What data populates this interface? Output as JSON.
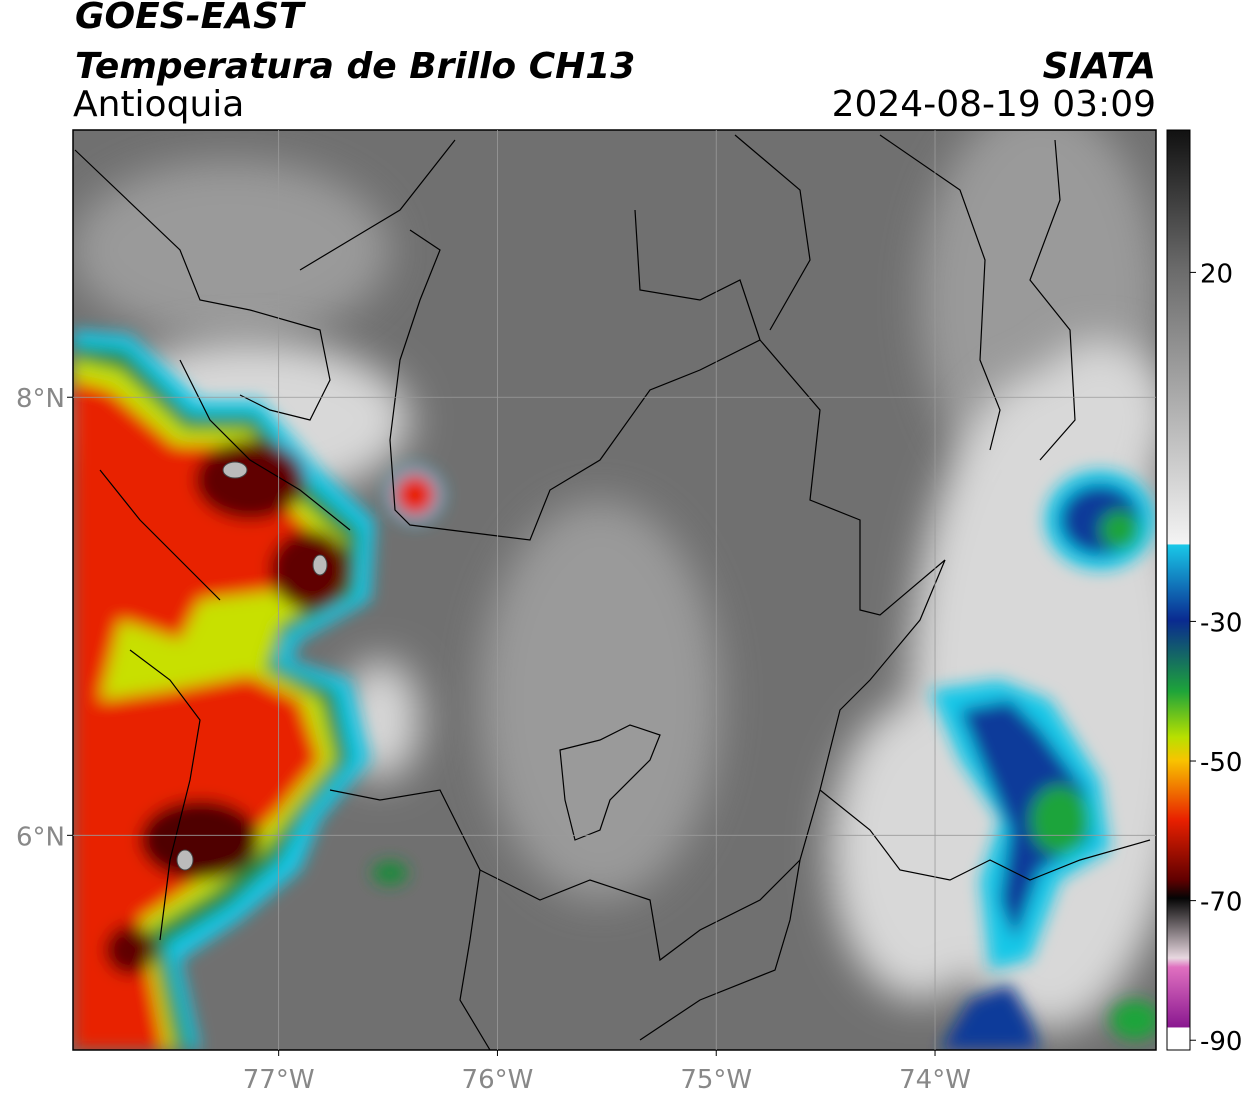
{
  "header": {
    "title": "GOES-EAST",
    "subtitle": "Temperatura de Brillo CH13",
    "region": "Antioquia",
    "source": "SIATA",
    "datetime": "2024-08-19 03:09"
  },
  "map": {
    "xlim": [
      -77.94,
      -72.99
    ],
    "ylim": [
      5.02,
      9.22
    ],
    "xticks": [
      {
        "value": -77,
        "label": "77°W"
      },
      {
        "value": -76,
        "label": "76°W"
      },
      {
        "value": -75,
        "label": "75°W"
      },
      {
        "value": -74,
        "label": "74°W"
      }
    ],
    "yticks": [
      {
        "value": 8,
        "label": "8°N"
      },
      {
        "value": 6,
        "label": "6°N"
      }
    ],
    "grid": true
  },
  "colorbar": {
    "lim": [
      -91.4,
      40.4
    ],
    "ticks": [
      20,
      -30,
      -50,
      -70,
      -90
    ]
  }
}
